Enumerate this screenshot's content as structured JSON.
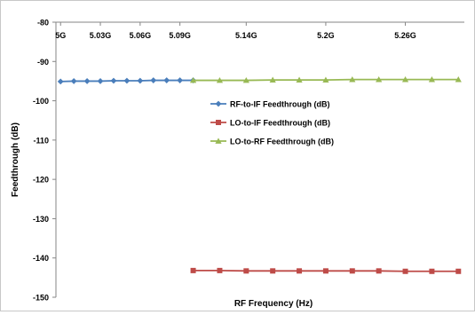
{
  "chart_data": {
    "type": "line",
    "title": "",
    "xlabel": "RF Frequency (Hz)",
    "ylabel": "Feedthrough (dB)",
    "ylim": [
      -150,
      -80
    ],
    "y_ticks": [
      -80,
      -90,
      -100,
      -110,
      -120,
      -130,
      -140,
      -150
    ],
    "y_tick_labels": [
      "-80",
      "-90",
      "-100",
      "-110",
      "-120",
      "-130",
      "-140",
      "-150"
    ],
    "x_ticks": [
      5.0,
      5.03,
      5.06,
      5.09,
      5.14,
      5.2,
      5.26
    ],
    "x_tick_labels": [
      "5G",
      "5.03G",
      "5.06G",
      "5.09G",
      "5.14G",
      "5.2G",
      "5.26G"
    ],
    "x_axis_position": "top",
    "grid": false,
    "legend_position": "center",
    "series": [
      {
        "name": "RF-to-IF Feedthrough (dB)",
        "color": "#4a7ebb",
        "marker": "diamond",
        "x": [
          5.0,
          5.01,
          5.02,
          5.03,
          5.04,
          5.05,
          5.06,
          5.07,
          5.08,
          5.09,
          5.1
        ],
        "values": [
          -95.1,
          -95.0,
          -95.0,
          -95.0,
          -94.9,
          -94.9,
          -94.9,
          -94.8,
          -94.8,
          -94.8,
          -94.8
        ]
      },
      {
        "name": "LO-to-IF Feedthrough (dB)",
        "color": "#be4b48",
        "marker": "square",
        "x": [
          5.1,
          5.12,
          5.14,
          5.16,
          5.18,
          5.2,
          5.22,
          5.24,
          5.26,
          5.28,
          5.3
        ],
        "values": [
          -143.2,
          -143.2,
          -143.3,
          -143.3,
          -143.3,
          -143.3,
          -143.3,
          -143.3,
          -143.4,
          -143.4,
          -143.4
        ]
      },
      {
        "name": "LO-to-RF Feedthrough (dB)",
        "color": "#98b954",
        "marker": "triangle",
        "x": [
          5.1,
          5.12,
          5.14,
          5.16,
          5.18,
          5.2,
          5.22,
          5.24,
          5.26,
          5.28,
          5.3
        ],
        "values": [
          -94.8,
          -94.8,
          -94.8,
          -94.7,
          -94.7,
          -94.7,
          -94.6,
          -94.6,
          -94.6,
          -94.6,
          -94.6
        ]
      }
    ]
  }
}
